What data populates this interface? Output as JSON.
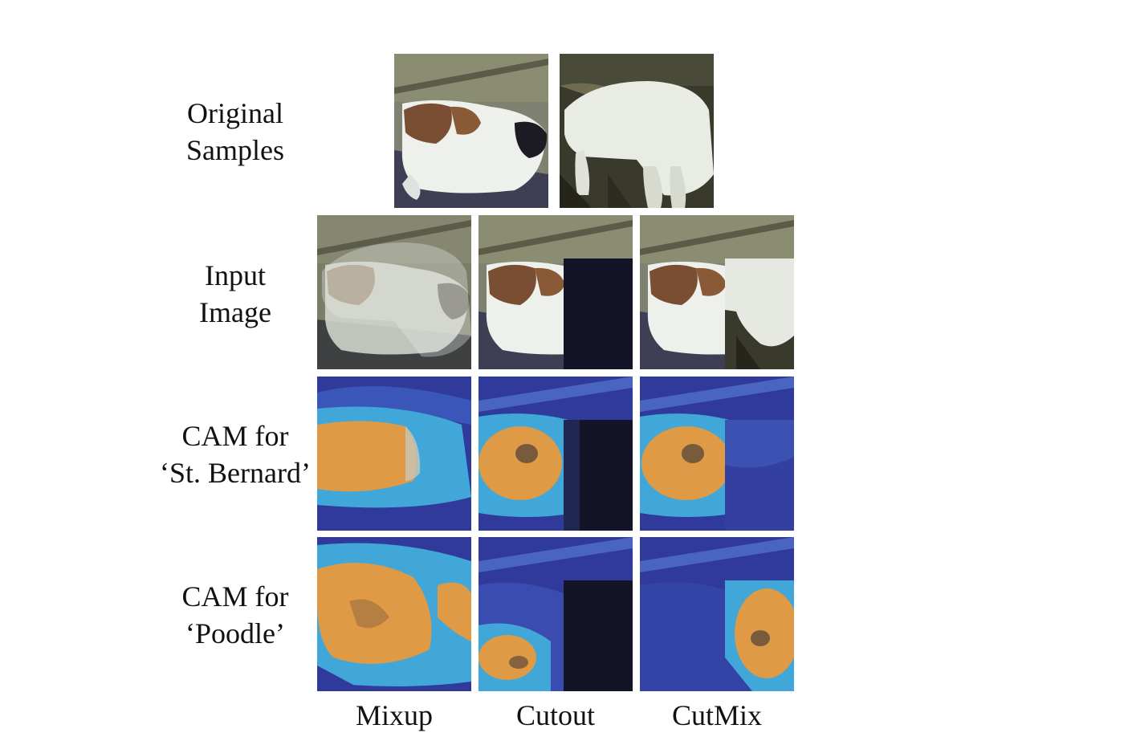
{
  "figure": {
    "row_labels": [
      {
        "lines": [
          "Original",
          "Samples"
        ]
      },
      {
        "lines": [
          "Input",
          "Image"
        ]
      },
      {
        "lines": [
          "CAM for",
          "‘St. Bernard’"
        ]
      },
      {
        "lines": [
          "CAM for",
          "‘Poodle’"
        ]
      }
    ],
    "column_labels": [
      "Mixup",
      "Cutout",
      "CutMix"
    ]
  },
  "colors": {
    "stbernard_grass": "#8a8d72",
    "stbernard_ground": "#3e3f55",
    "poodle_fur": "#e9ece4",
    "poodle_ground": "#3a3a2c",
    "cutout_black": "#141428",
    "cam_deep": "#2f3a9a",
    "cam_mid": "#41a7d8",
    "cam_hot": "#de9a45"
  }
}
